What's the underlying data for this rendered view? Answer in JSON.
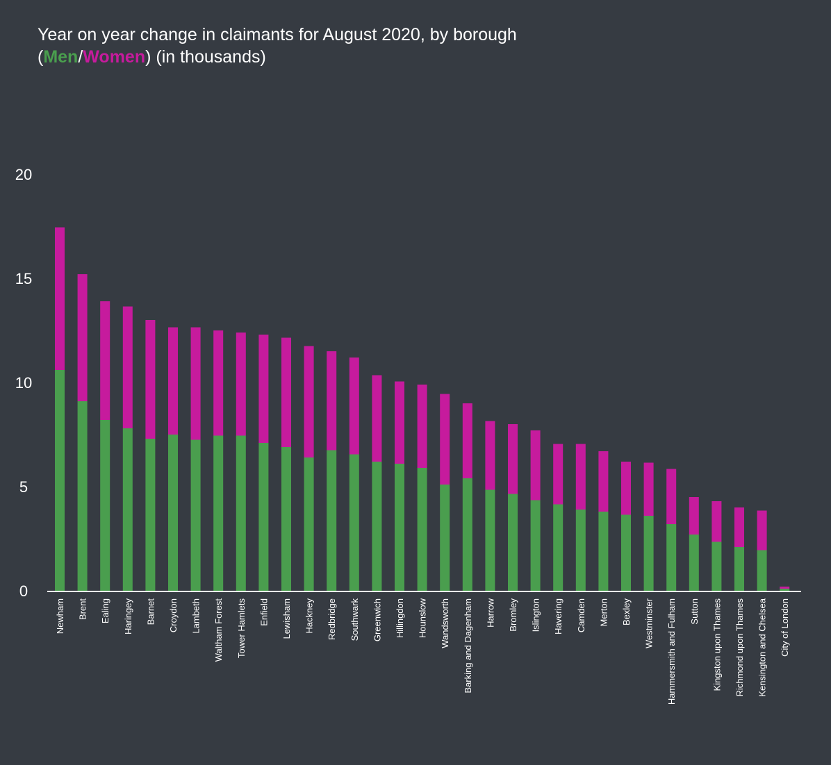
{
  "chart_data": {
    "type": "bar",
    "stacked": true,
    "title": "Year on year change in claimants for August  2020, by borough",
    "subtitle": {
      "open": "(",
      "men": "Men",
      "sep": "/",
      "women": "Women",
      "close": ") (in thousands)"
    },
    "colors": {
      "men": "#4a9e4e",
      "women": "#c61b9d",
      "background": "#363b42",
      "axis": "#ffffff"
    },
    "ylim": [
      0,
      20
    ],
    "yticks": [
      0,
      5,
      10,
      15,
      20
    ],
    "categories": [
      "Newham",
      "Brent",
      "Ealing",
      "Haringey",
      "Barnet",
      "Croydon",
      "Lambeth",
      "Waltham Forest",
      "Tower Hamlets",
      "Enfield",
      "Lewisham",
      "Hackney",
      "Redbridge",
      "Southwark",
      "Greenwich",
      "Hillingdon",
      "Hounslow",
      "Wandsworth",
      "Barking and Dagenham",
      "Harrow",
      "Bromley",
      "Islington",
      "Havering",
      "Camden",
      "Merton",
      "Bexley",
      "Westminster",
      "Hammersmith and Fulham",
      "Sutton",
      "Kingston upon Thames",
      "Richmond upon Thames",
      "Kensington and Chelsea",
      "City of London"
    ],
    "series": [
      {
        "name": "Men",
        "values": [
          10.6,
          9.1,
          8.2,
          7.8,
          7.3,
          7.5,
          7.25,
          7.45,
          7.45,
          7.1,
          6.9,
          6.4,
          6.75,
          6.55,
          6.2,
          6.1,
          5.9,
          5.1,
          5.4,
          4.85,
          4.65,
          4.35,
          4.15,
          3.9,
          3.8,
          3.65,
          3.6,
          3.2,
          2.7,
          2.35,
          2.1,
          1.95,
          0.1
        ]
      },
      {
        "name": "Women",
        "values": [
          6.85,
          6.1,
          5.7,
          5.85,
          5.7,
          5.15,
          5.4,
          5.05,
          4.95,
          5.2,
          5.25,
          5.35,
          4.75,
          4.65,
          4.15,
          3.95,
          4.0,
          4.35,
          3.6,
          3.3,
          3.35,
          3.35,
          2.9,
          3.15,
          2.9,
          2.55,
          2.55,
          2.65,
          1.8,
          1.95,
          1.9,
          1.9,
          0.1
        ]
      }
    ]
  }
}
